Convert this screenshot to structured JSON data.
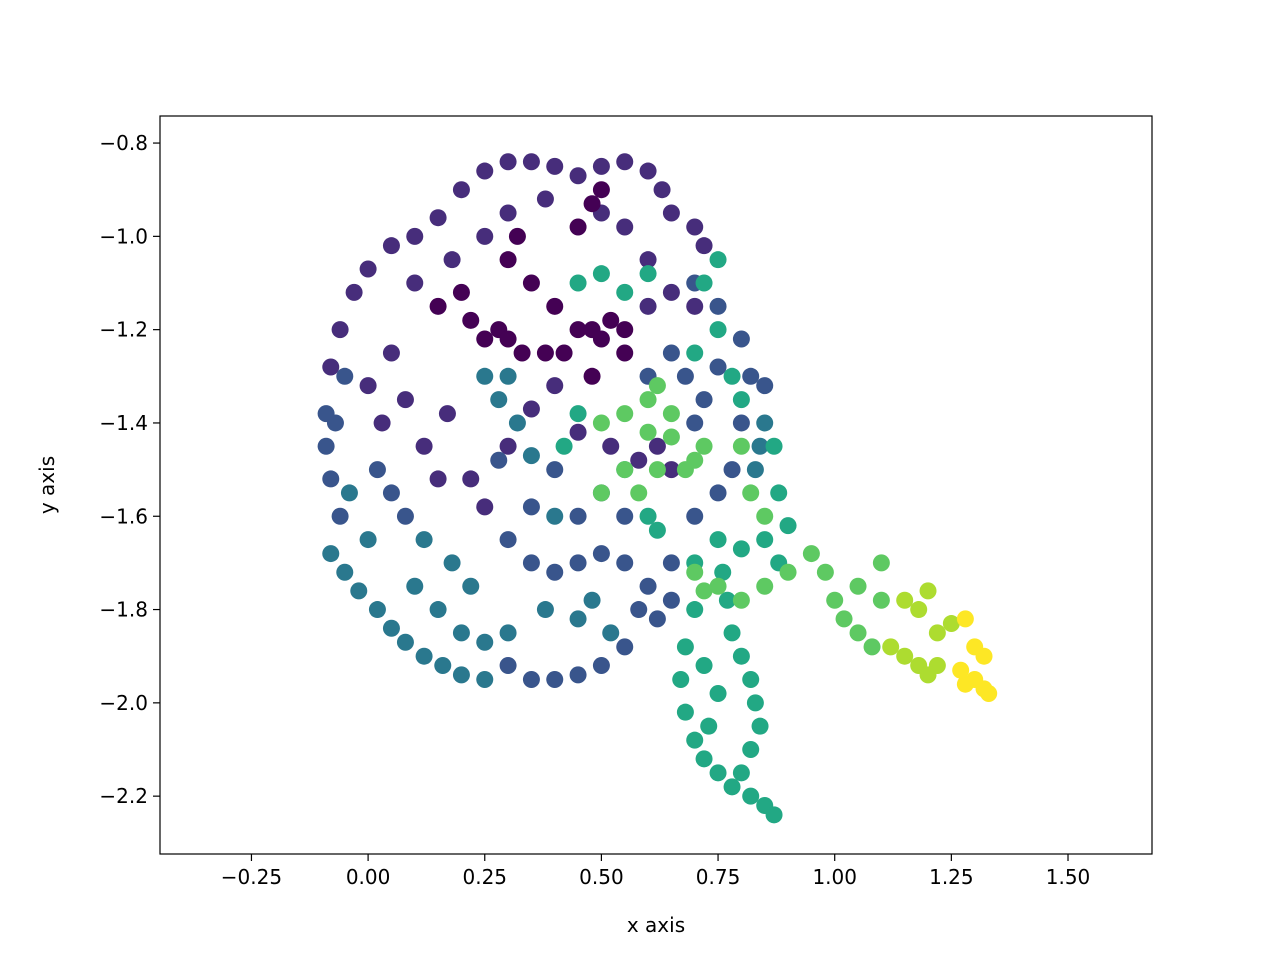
{
  "chart_data": {
    "type": "scatter",
    "xlabel": "x axis",
    "ylabel": "y axis",
    "xlim": [
      -0.446,
      1.68
    ],
    "ylim": [
      -2.324,
      -0.742
    ],
    "xticks": [
      {
        "value": -0.25,
        "label": "−0.25"
      },
      {
        "value": 0,
        "label": "0.00"
      },
      {
        "value": 0.25,
        "label": "0.25"
      },
      {
        "value": 0.5,
        "label": "0.50"
      },
      {
        "value": 0.75,
        "label": "0.75"
      },
      {
        "value": 1,
        "label": "1.00"
      },
      {
        "value": 1.25,
        "label": "1.25"
      },
      {
        "value": 1.5,
        "label": "1.50"
      }
    ],
    "yticks": [
      {
        "value": -2.2,
        "label": "−2.2"
      },
      {
        "value": -2.0,
        "label": "−2.0"
      },
      {
        "value": -1.8,
        "label": "−1.8"
      },
      {
        "value": -1.6,
        "label": "−1.6"
      },
      {
        "value": -1.4,
        "label": "−1.4"
      },
      {
        "value": -1.2,
        "label": "−1.2"
      },
      {
        "value": -1.0,
        "label": "−1.0"
      },
      {
        "value": -0.8,
        "label": "−0.8"
      }
    ],
    "series": [
      {
        "color": "#472d7b",
        "x": [
          0.05,
          0.1,
          0.15,
          0.2,
          0.25,
          0.3,
          0.35,
          0.4,
          0.45,
          0.5,
          0.55,
          0.6,
          0.63,
          0.65,
          0.7,
          0.72,
          0.0,
          -0.03,
          -0.06,
          -0.08,
          0.18,
          0.25,
          0.3,
          0.38,
          0.5,
          0.55,
          0.6,
          0.1,
          0.05,
          0.08,
          0.12,
          0.15,
          0.22,
          0.25,
          0.3,
          0.35,
          0.4,
          0.45,
          0.52,
          0.58,
          0.62,
          0.65,
          0.0,
          0.03,
          0.17,
          0.6,
          0.65,
          0.7
        ],
        "y": [
          -1.02,
          -1.0,
          -0.96,
          -0.9,
          -0.86,
          -0.84,
          -0.84,
          -0.85,
          -0.87,
          -0.85,
          -0.84,
          -0.86,
          -0.9,
          -0.95,
          -0.98,
          -1.02,
          -1.07,
          -1.12,
          -1.2,
          -1.28,
          -1.05,
          -1.0,
          -0.95,
          -0.92,
          -0.95,
          -0.98,
          -1.05,
          -1.1,
          -1.25,
          -1.35,
          -1.45,
          -1.52,
          -1.52,
          -1.58,
          -1.45,
          -1.37,
          -1.32,
          -1.42,
          -1.45,
          -1.48,
          -1.45,
          -1.5,
          -1.32,
          -1.4,
          -1.38,
          -1.15,
          -1.12,
          -1.15
        ]
      },
      {
        "color": "#440154",
        "x": [
          0.25,
          0.28,
          0.3,
          0.22,
          0.33,
          0.38,
          0.42,
          0.45,
          0.48,
          0.5,
          0.52,
          0.55,
          0.4,
          0.35,
          0.3,
          0.32,
          0.45,
          0.48,
          0.5,
          0.2,
          0.15,
          0.48,
          0.55
        ],
        "y": [
          -1.22,
          -1.2,
          -1.22,
          -1.18,
          -1.25,
          -1.25,
          -1.25,
          -1.2,
          -1.2,
          -1.22,
          -1.18,
          -1.2,
          -1.15,
          -1.1,
          -1.05,
          -1.0,
          -0.98,
          -0.93,
          -0.9,
          -1.12,
          -1.15,
          -1.3,
          -1.25
        ]
      },
      {
        "color": "#39558c",
        "x": [
          -0.09,
          -0.09,
          -0.08,
          -0.07,
          -0.05,
          -0.06,
          0.02,
          0.05,
          0.08,
          0.3,
          0.35,
          0.4,
          0.45,
          0.5,
          0.55,
          0.6,
          0.65,
          0.7,
          0.75,
          0.78,
          0.8,
          0.82,
          0.8,
          0.75,
          0.7,
          0.75,
          0.72,
          0.7,
          0.68,
          0.65,
          0.6,
          0.55,
          0.45,
          0.35,
          0.4,
          0.5,
          0.28,
          0.58,
          0.55,
          0.5,
          0.45,
          0.4,
          0.35,
          0.3,
          0.62,
          0.65,
          0.85
        ],
        "y": [
          -1.38,
          -1.45,
          -1.52,
          -1.4,
          -1.3,
          -1.6,
          -1.5,
          -1.55,
          -1.6,
          -1.65,
          -1.7,
          -1.72,
          -1.7,
          -1.68,
          -1.7,
          -1.75,
          -1.7,
          -1.6,
          -1.55,
          -1.5,
          -1.4,
          -1.3,
          -1.22,
          -1.15,
          -1.1,
          -1.28,
          -1.35,
          -1.4,
          -1.3,
          -1.25,
          -1.3,
          -1.6,
          -1.6,
          -1.58,
          -1.5,
          -1.55,
          -1.48,
          -1.8,
          -1.88,
          -1.92,
          -1.94,
          -1.95,
          -1.95,
          -1.92,
          -1.82,
          -1.78,
          -1.32
        ]
      },
      {
        "color": "#2a788e",
        "x": [
          -0.08,
          -0.05,
          -0.02,
          0.02,
          0.05,
          0.08,
          0.12,
          0.16,
          0.2,
          0.25,
          0.1,
          0.15,
          0.2,
          0.25,
          0.3,
          0.22,
          0.0,
          -0.04,
          0.12,
          0.18,
          0.28,
          0.32,
          0.25,
          0.3,
          0.35,
          0.4,
          0.38,
          0.45,
          0.48,
          0.52,
          0.85,
          0.84,
          0.83
        ],
        "y": [
          -1.68,
          -1.72,
          -1.76,
          -1.8,
          -1.84,
          -1.87,
          -1.9,
          -1.92,
          -1.94,
          -1.95,
          -1.75,
          -1.8,
          -1.85,
          -1.87,
          -1.85,
          -1.75,
          -1.65,
          -1.55,
          -1.65,
          -1.7,
          -1.35,
          -1.4,
          -1.3,
          -1.3,
          -1.47,
          -1.6,
          -1.8,
          -1.82,
          -1.78,
          -1.85,
          -1.4,
          -1.45,
          -1.5
        ]
      },
      {
        "color": "#22a884",
        "x": [
          0.7,
          0.68,
          0.67,
          0.68,
          0.7,
          0.72,
          0.75,
          0.78,
          0.82,
          0.85,
          0.87,
          0.8,
          0.82,
          0.84,
          0.83,
          0.82,
          0.8,
          0.78,
          0.77,
          0.76,
          0.72,
          0.75,
          0.73,
          0.7,
          0.75,
          0.8,
          0.85,
          0.7,
          0.75,
          0.78,
          0.8,
          0.75,
          0.72,
          0.55,
          0.5,
          0.6,
          0.45,
          0.55,
          0.6,
          0.62,
          0.87,
          0.88,
          0.9,
          0.88,
          0.42,
          0.45
        ],
        "y": [
          -1.8,
          -1.88,
          -1.95,
          -2.02,
          -2.08,
          -2.12,
          -2.15,
          -2.18,
          -2.2,
          -2.22,
          -2.24,
          -2.15,
          -2.1,
          -2.05,
          -2.0,
          -1.95,
          -1.9,
          -1.85,
          -1.78,
          -1.72,
          -1.92,
          -1.98,
          -2.05,
          -1.7,
          -1.65,
          -1.67,
          -1.65,
          -1.25,
          -1.2,
          -1.3,
          -1.35,
          -1.05,
          -1.1,
          -1.12,
          -1.08,
          -1.08,
          -1.1,
          -1.5,
          -1.6,
          -1.63,
          -1.45,
          -1.55,
          -1.62,
          -1.7,
          -1.45,
          -1.38
        ]
      },
      {
        "color": "#5ec962",
        "x": [
          0.5,
          0.55,
          0.6,
          0.65,
          0.6,
          0.65,
          0.55,
          0.5,
          0.58,
          0.62,
          0.68,
          0.7,
          0.72,
          0.62,
          0.8,
          0.82,
          0.85,
          0.75,
          0.8,
          0.85,
          0.9,
          0.95,
          0.98,
          1.0,
          1.02,
          1.05,
          1.08,
          1.1,
          1.05,
          0.7,
          0.72,
          1.1
        ],
        "y": [
          -1.4,
          -1.38,
          -1.35,
          -1.38,
          -1.42,
          -1.43,
          -1.5,
          -1.55,
          -1.55,
          -1.5,
          -1.5,
          -1.48,
          -1.45,
          -1.32,
          -1.45,
          -1.55,
          -1.6,
          -1.75,
          -1.78,
          -1.75,
          -1.72,
          -1.68,
          -1.72,
          -1.78,
          -1.82,
          -1.85,
          -1.88,
          -1.78,
          -1.75,
          -1.72,
          -1.76,
          -1.7
        ]
      },
      {
        "color": "#addc30",
        "x": [
          1.12,
          1.15,
          1.18,
          1.2,
          1.15,
          1.18,
          1.2,
          1.22,
          1.25,
          1.22
        ],
        "y": [
          -1.88,
          -1.9,
          -1.92,
          -1.94,
          -1.78,
          -1.8,
          -1.76,
          -1.85,
          -1.83,
          -1.92
        ]
      },
      {
        "color": "#fde725",
        "x": [
          1.28,
          1.3,
          1.32,
          1.3,
          1.28,
          1.32,
          1.33,
          1.27
        ],
        "y": [
          -1.82,
          -1.88,
          -1.9,
          -1.95,
          -1.96,
          -1.97,
          -1.98,
          -1.93
        ]
      }
    ]
  }
}
